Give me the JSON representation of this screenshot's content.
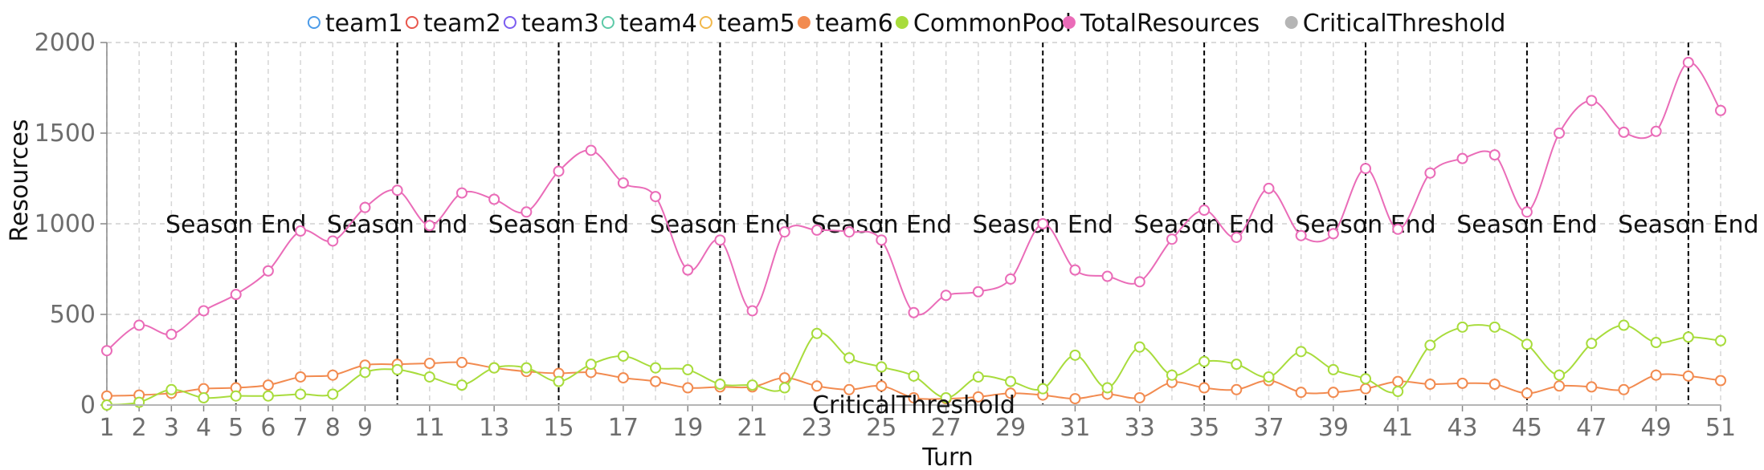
{
  "chart_data": {
    "type": "line",
    "xlabel": "Turn",
    "ylabel": "Resources",
    "xlim": [
      1,
      51
    ],
    "ylim": [
      0,
      2000
    ],
    "y_ticks": [
      0,
      500,
      1000,
      1500,
      2000
    ],
    "x_ticks": [
      1,
      2,
      3,
      4,
      5,
      6,
      7,
      8,
      9,
      11,
      13,
      15,
      17,
      19,
      21,
      23,
      25,
      27,
      29,
      31,
      33,
      35,
      37,
      39,
      41,
      43,
      45,
      47,
      49,
      51
    ],
    "grid": true,
    "legend_position": "top",
    "legend": [
      {
        "name": "team1",
        "color": "#4c9be8",
        "marker": "hollow-circle"
      },
      {
        "name": "team2",
        "color": "#e8564c",
        "marker": "hollow-circle"
      },
      {
        "name": "team3",
        "color": "#7b5cf0",
        "marker": "hollow-circle"
      },
      {
        "name": "team4",
        "color": "#5cc9a7",
        "marker": "hollow-circle"
      },
      {
        "name": "team5",
        "color": "#f2b84b",
        "marker": "hollow-circle"
      },
      {
        "name": "team6",
        "color": "#f28b50",
        "marker": "filled-circle"
      },
      {
        "name": "CommonPool",
        "color": "#a8dc3c",
        "marker": "filled-circle"
      },
      {
        "name": "TotalResources",
        "color": "#ea6cb8",
        "marker": "filled-circle"
      },
      {
        "name": "CriticalThreshold",
        "color": "#b5b5b5",
        "marker": "filled-circle"
      }
    ],
    "x": [
      1,
      2,
      3,
      4,
      5,
      6,
      7,
      8,
      9,
      10,
      11,
      12,
      13,
      14,
      15,
      16,
      17,
      18,
      19,
      20,
      21,
      22,
      23,
      24,
      25,
      26,
      27,
      28,
      29,
      30,
      31,
      32,
      33,
      34,
      35,
      36,
      37,
      38,
      39,
      40,
      41,
      42,
      43,
      44,
      45,
      46,
      47,
      48,
      49,
      50,
      51
    ],
    "series": [
      {
        "name": "team6",
        "color": "#f28b50",
        "values": [
          50,
          55,
          65,
          90,
          95,
          110,
          155,
          165,
          220,
          225,
          230,
          235,
          205,
          185,
          175,
          180,
          150,
          130,
          95,
          100,
          100,
          150,
          105,
          85,
          105,
          40,
          35,
          45,
          65,
          55,
          35,
          60,
          40,
          125,
          95,
          85,
          135,
          70,
          70,
          90,
          130,
          115,
          120,
          115,
          65,
          105,
          100,
          85,
          165,
          160,
          135
        ]
      },
      {
        "name": "CommonPool",
        "color": "#a8dc3c",
        "values": [
          0,
          15,
          85,
          40,
          50,
          50,
          60,
          60,
          180,
          195,
          155,
          110,
          205,
          205,
          130,
          225,
          270,
          205,
          195,
          115,
          110,
          95,
          395,
          260,
          210,
          160,
          40,
          155,
          130,
          90,
          275,
          95,
          320,
          165,
          240,
          225,
          155,
          295,
          195,
          145,
          75,
          330,
          430,
          430,
          335,
          165,
          340,
          440,
          345,
          375,
          355
        ]
      },
      {
        "name": "TotalResources",
        "color": "#ea6cb8",
        "values": [
          300,
          440,
          390,
          520,
          610,
          740,
          960,
          905,
          1090,
          1185,
          990,
          1170,
          1135,
          1065,
          1290,
          1405,
          1225,
          1150,
          745,
          910,
          520,
          955,
          965,
          955,
          910,
          510,
          605,
          625,
          695,
          1000,
          745,
          710,
          680,
          915,
          1075,
          925,
          1195,
          935,
          945,
          1305,
          970,
          1280,
          1360,
          1380,
          1065,
          1500,
          1680,
          1505,
          1510,
          1890,
          1625
        ]
      }
    ],
    "critical_threshold": {
      "label": "CriticalThreshold",
      "value": 0
    },
    "season_markers": {
      "label": "Season End",
      "turns": [
        5,
        10,
        15,
        20,
        25,
        30,
        35,
        40,
        45,
        50
      ]
    }
  }
}
